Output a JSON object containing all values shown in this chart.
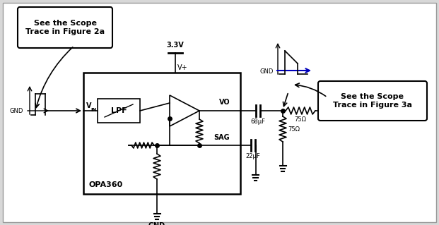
{
  "bg_color": "#d8d8d8",
  "inner_bg": "#ffffff",
  "box_color": "#000000",
  "blue_arrow_color": "#0000bb",
  "callout1": "See the Scope\nTrace in Figure 2a",
  "callout2": "See the Scope\nTrace in Figure 3a",
  "label_opa": "OPA360",
  "label_lpf": "LPF",
  "label_vin": "V",
  "label_vin_sub": "IN",
  "label_vo": "VO",
  "label_sag": "SAG",
  "label_vplus": "V+",
  "label_33v": "3.3V",
  "label_gnd": "GND",
  "label_68uf": "68μF",
  "label_22uf": "22μF",
  "label_75ohm1": "75Ω",
  "label_75ohm2": "75Ω",
  "font_size_label": 7,
  "fig_width": 6.21,
  "fig_height": 3.19
}
